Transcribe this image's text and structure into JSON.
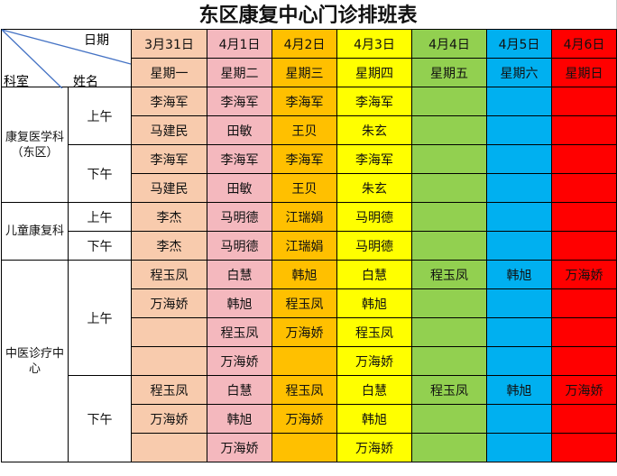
{
  "title": "东区康复中心门诊排班表",
  "header": {
    "date_label": "日期",
    "dept_label": "科室",
    "name_label": "姓名"
  },
  "colors": [
    "#f8cbad",
    "#f4b8be",
    "#ffc000",
    "#ffff00",
    "#92d050",
    "#00b0f0",
    "#ff0000"
  ],
  "dates": [
    "3月31日",
    "4月1日",
    "4月2日",
    "4月3日",
    "4月4日",
    "4月5日",
    "4月6日"
  ],
  "weekdays": [
    "星期一",
    "星期二",
    "星期三",
    "星期四",
    "星期五",
    "星期六",
    "星期日"
  ],
  "departments": [
    {
      "name": "康复医学科（东区）",
      "sessions": [
        {
          "label": "上午",
          "rows": [
            [
              "李海军",
              "李海军",
              "李海军",
              "李海军",
              "",
              "",
              ""
            ],
            [
              "马建民",
              "田敏",
              "王贝",
              "朱玄",
              "",
              "",
              ""
            ]
          ]
        },
        {
          "label": "下午",
          "rows": [
            [
              "李海军",
              "李海军",
              "李海军",
              "李海军",
              "",
              "",
              ""
            ],
            [
              "马建民",
              "田敏",
              "王贝",
              "朱玄",
              "",
              "",
              ""
            ]
          ]
        }
      ]
    },
    {
      "name": "儿童康复科",
      "sessions": [
        {
          "label": "上午",
          "rows": [
            [
              "李杰",
              "马明德",
              "江瑞娟",
              "马明德",
              "",
              "",
              ""
            ]
          ]
        },
        {
          "label": "下午",
          "rows": [
            [
              "李杰",
              "马明德",
              "江瑞娟",
              "马明德",
              "",
              "",
              ""
            ]
          ]
        }
      ]
    },
    {
      "name": "中医诊疗中心",
      "sessions": [
        {
          "label": "上午",
          "rows": [
            [
              "程玉凤",
              "白慧",
              "韩旭",
              "白慧",
              "程玉凤",
              "韩旭",
              "万海娇"
            ],
            [
              "万海娇",
              "韩旭",
              "程玉凤",
              "韩旭",
              "",
              "",
              ""
            ],
            [
              "",
              "程玉凤",
              "万海娇",
              "程玉凤",
              "",
              "",
              ""
            ],
            [
              "",
              "万海娇",
              "",
              "万海娇",
              "",
              "",
              ""
            ]
          ]
        },
        {
          "label": "下午",
          "rows": [
            [
              "程玉凤",
              "白慧",
              "程玉凤",
              "白慧",
              "程玉凤",
              "韩旭",
              "万海娇"
            ],
            [
              "万海娇",
              "韩旭",
              "万海娇",
              "韩旭",
              "",
              "",
              ""
            ],
            [
              "",
              "万海娇",
              "",
              "万海娇",
              "",
              "",
              ""
            ]
          ]
        }
      ]
    }
  ]
}
